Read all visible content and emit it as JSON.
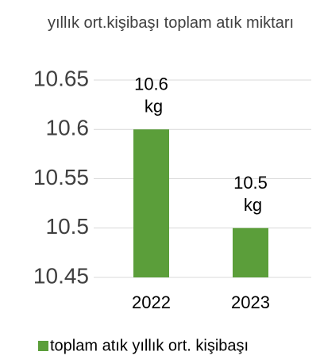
{
  "chart_data": {
    "type": "bar",
    "title": "yıllık ort.kişibaşı toplam atık miktarı",
    "categories": [
      "2022",
      "2023"
    ],
    "series": [
      {
        "name": "toplam atık yıllık ort. kişibaşı",
        "color": "#5b9e3a",
        "values": [
          10.6,
          10.5
        ],
        "value_labels": [
          "10.6 kg",
          "10.5 kg"
        ]
      }
    ],
    "ylim": [
      10.45,
      10.65
    ],
    "yticks": [
      10.45,
      10.5,
      10.55,
      10.6,
      10.65
    ],
    "grid": true,
    "legend": "bottom"
  }
}
